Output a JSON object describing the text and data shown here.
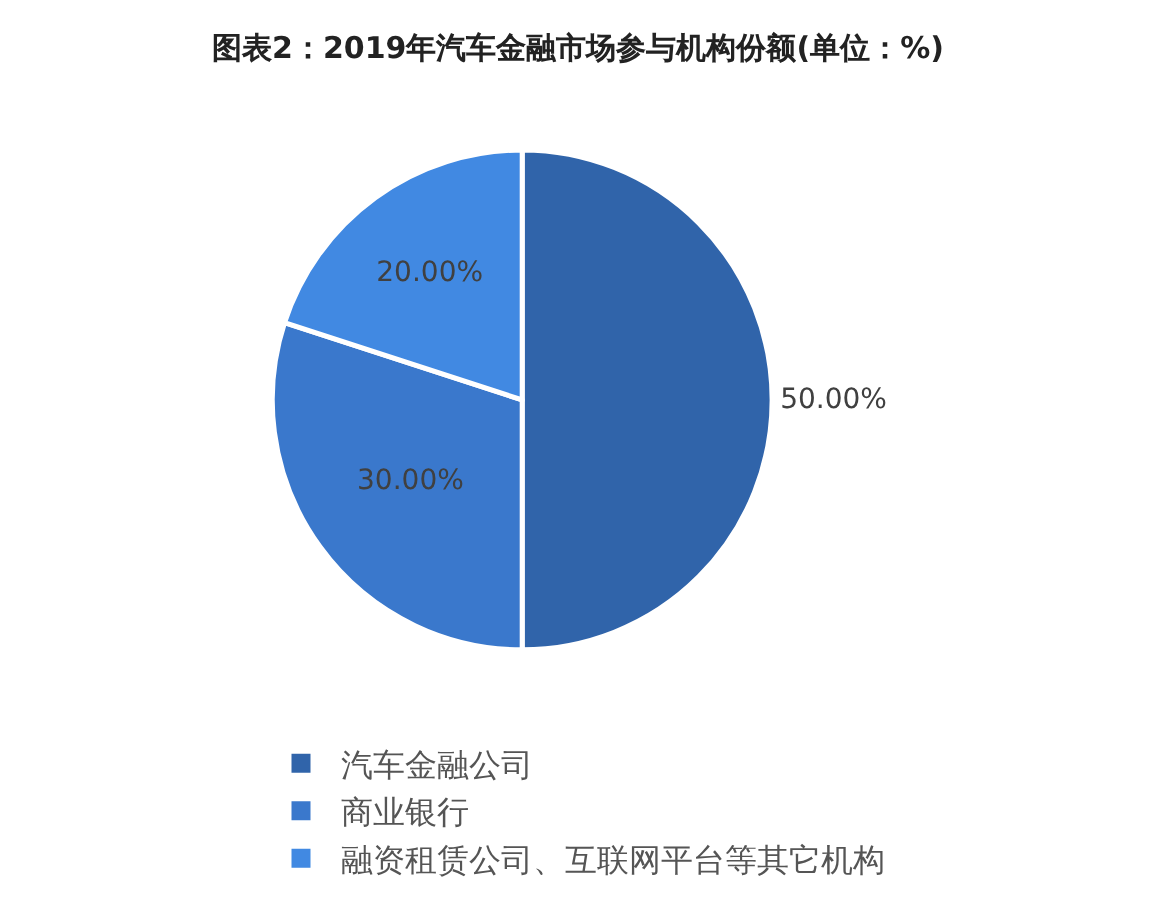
{
  "chart_data": {
    "type": "pie",
    "title": "图表2：2019年汽车金融市场参与机构份额(单位：%)",
    "categories": [
      "汽车金融公司",
      "商业银行",
      "融资租赁公司、互联网平台等其它机构"
    ],
    "values": [
      50,
      30,
      20
    ],
    "colors": [
      "#3064aa",
      "#3a78cc",
      "#4189e2"
    ],
    "value_labels": [
      "50.00%",
      "30.00%",
      "20.00%"
    ],
    "legend": "bottom"
  }
}
